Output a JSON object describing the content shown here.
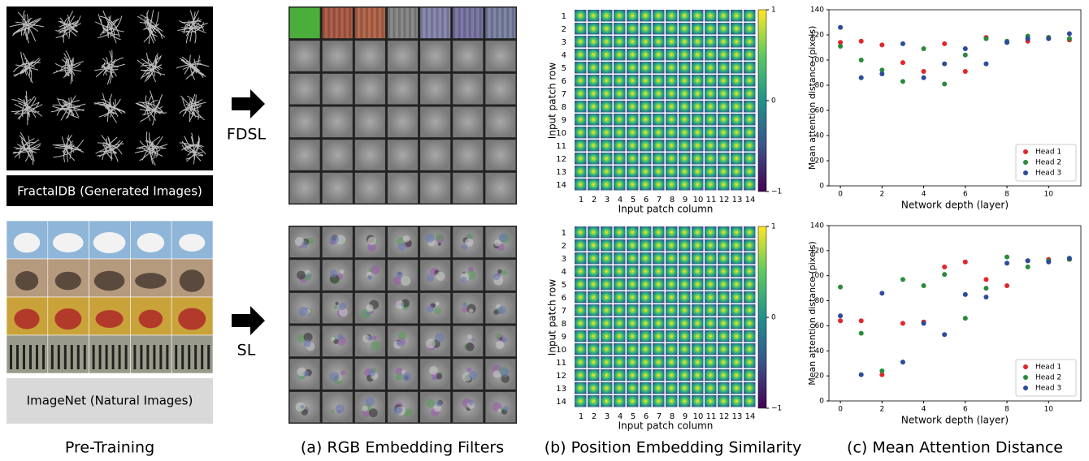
{
  "pretraining": {
    "fractal_label": "FractalDB (Generated Images)",
    "imagenet_label": "ImageNet (Natural Images)",
    "caption": "Pre-Training"
  },
  "arrows": {
    "top": "FDSL",
    "bottom": "SL"
  },
  "captions": [
    "(a) RGB Embedding Filters",
    "(b) Position Embedding Similarity",
    "(c) Mean Attention Distance"
  ],
  "position_embedding": {
    "row_label": "Input patch row",
    "column_label": "Input patch column",
    "rows": [
      1,
      2,
      3,
      4,
      5,
      6,
      7,
      8,
      9,
      10,
      11,
      12,
      13,
      14
    ],
    "columns": [
      1,
      2,
      3,
      4,
      5,
      6,
      7,
      8,
      9,
      10,
      11,
      12,
      13,
      14
    ],
    "colorbar_ticks": [
      {
        "value": -1,
        "label": "−1"
      },
      0,
      1
    ],
    "colorbar_lim": [
      -1,
      1
    ]
  },
  "chart_data": [
    {
      "type": "scatter",
      "xlabel": "Network depth (layer)",
      "ylabel": "Mean attention distance (pixels)",
      "x": [
        0,
        1,
        2,
        3,
        4,
        5,
        6,
        7,
        8,
        9,
        10,
        11
      ],
      "xlim": [
        -0.55,
        11.55
      ],
      "ylim": [
        0,
        140
      ],
      "xticks": [
        0,
        2,
        4,
        6,
        8,
        10
      ],
      "yticks": [
        0,
        20,
        40,
        60,
        80,
        100,
        120,
        140
      ],
      "legend": "lower right",
      "series": [
        {
          "name": "Head 1",
          "color": "#e3262b",
          "values": [
            114,
            115,
            112,
            98,
            91,
            113,
            91,
            118,
            114,
            115,
            118,
            116
          ]
        },
        {
          "name": "Head 2",
          "color": "#2a8a3c",
          "values": [
            111,
            100,
            92,
            83,
            109,
            81,
            104,
            117,
            115,
            119,
            118,
            117
          ]
        },
        {
          "name": "Head 3",
          "color": "#2b4b9b",
          "values": [
            126,
            86,
            89,
            113,
            86,
            97,
            109,
            97,
            114,
            117,
            117,
            121
          ]
        }
      ]
    },
    {
      "type": "scatter",
      "xlabel": "Network depth (layer)",
      "ylabel": "Mean attention distance (pixels)",
      "x": [
        0,
        1,
        2,
        3,
        4,
        5,
        6,
        7,
        8,
        9,
        10,
        11
      ],
      "xlim": [
        -0.55,
        11.55
      ],
      "ylim": [
        0,
        140
      ],
      "xticks": [
        0,
        2,
        4,
        6,
        8,
        10
      ],
      "yticks": [
        0,
        20,
        40,
        60,
        80,
        100,
        120,
        140
      ],
      "legend": "lower right",
      "series": [
        {
          "name": "Head 1",
          "color": "#e3262b",
          "values": [
            64,
            64,
            21,
            62,
            63,
            107,
            111,
            97,
            92,
            112,
            113,
            113
          ]
        },
        {
          "name": "Head 2",
          "color": "#2a8a3c",
          "values": [
            91,
            54,
            24,
            97,
            92,
            101,
            66,
            90,
            115,
            107,
            112,
            113
          ]
        },
        {
          "name": "Head 3",
          "color": "#2b4b9b",
          "values": [
            68,
            21,
            86,
            31,
            62,
            53,
            85,
            83,
            110,
            112,
            111,
            114
          ]
        }
      ]
    }
  ]
}
